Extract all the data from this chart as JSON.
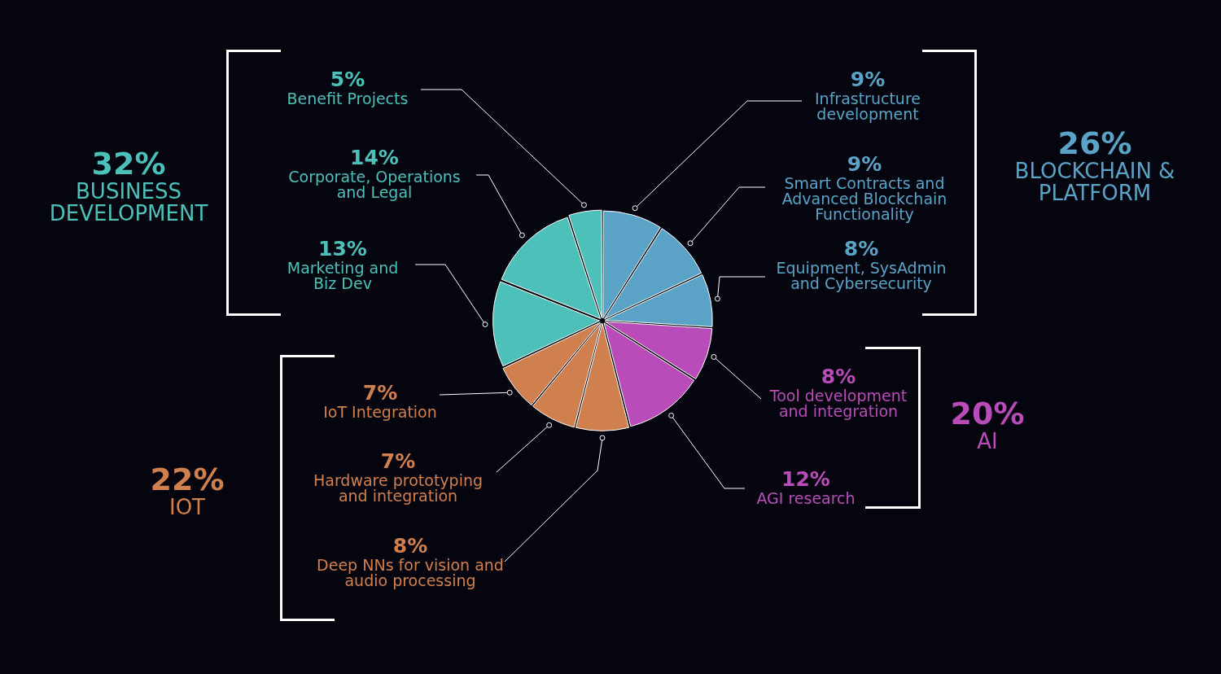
{
  "chart_data": {
    "type": "pie",
    "categories": [
      "Infrastructure development",
      "Smart Contracts and Advanced Blockchain Functionality",
      "Equipment, SysAdmin and Cybersecurity",
      "Tool development and integration",
      "AGI research",
      "Deep NNs for vision and audio processing",
      "Hardware prototyping and integration",
      "IoT Integration",
      "Marketing and Biz Dev",
      "Corporate, Operations and Legal",
      "Benefit Projects"
    ],
    "values": [
      9,
      9,
      8,
      8,
      12,
      8,
      7,
      7,
      13,
      14,
      5
    ],
    "value_labels": [
      "9%",
      "9%",
      "8%",
      "8%",
      "12%",
      "8%",
      "7%",
      "7%",
      "13%",
      "14%",
      "5%"
    ],
    "colors": [
      "#5aa3c6",
      "#5aa3c6",
      "#5aa3c6",
      "#b94cb9",
      "#b94cb9",
      "#d0804f",
      "#d0804f",
      "#d0804f",
      "#4dc0b9",
      "#4dc0b9",
      "#4dc0b9"
    ],
    "annotations": [
      "32%",
      "BUSINESS DEVELOPMENT",
      "26%",
      "BLOCKCHAIN & PLATFORM",
      "20%",
      "AI",
      "22%",
      "IOT"
    ]
  }
}
